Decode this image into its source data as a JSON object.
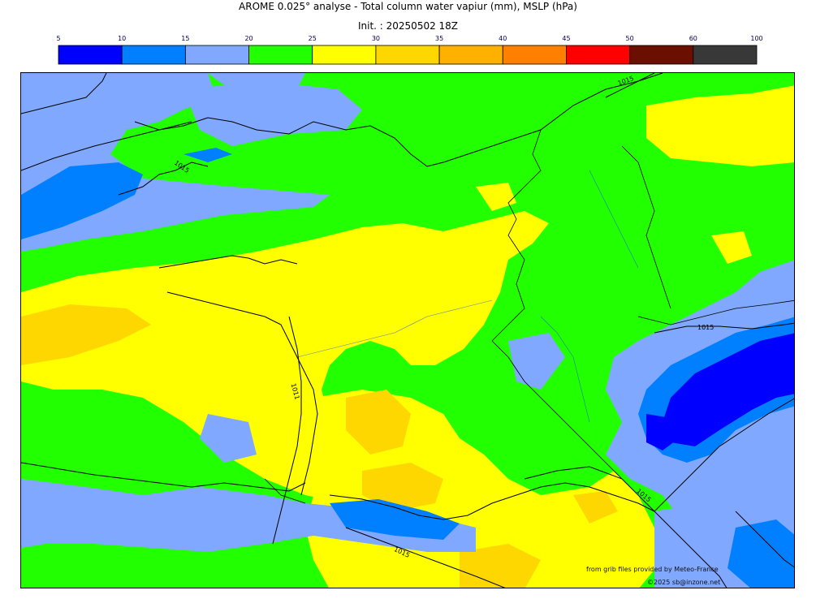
{
  "title": "AROME 0.025° analyse - Total column water vapiur (mm), MSLP (hPa)",
  "subtitle": "Init. : 20250502 18Z",
  "legend": {
    "ticks": [
      "5",
      "10",
      "15",
      "20",
      "25",
      "30",
      "35",
      "40",
      "45",
      "50",
      "60",
      "100"
    ],
    "colors": [
      "#0000ff",
      "#0080ff",
      "#80a8ff",
      "#22ff00",
      "#ffff00",
      "#ffd700",
      "#ffb000",
      "#ff8000",
      "#ff0000",
      "#6b0f00",
      "#383838"
    ]
  },
  "isobar_labels": [
    "1015",
    "1015",
    "1011",
    "1015",
    "1015",
    "1015"
  ],
  "credits": {
    "line1": "from grib files provided by Meteo-France",
    "line2": "©2025 sb@inzone.net"
  },
  "colors": {
    "water_lt15": "#80a8ff",
    "water_10": "#0080ff",
    "water_5": "#0000ff",
    "green": "#22ff00",
    "yellow": "#ffff00",
    "gold": "#ffd700",
    "orange": "#ffb000"
  }
}
